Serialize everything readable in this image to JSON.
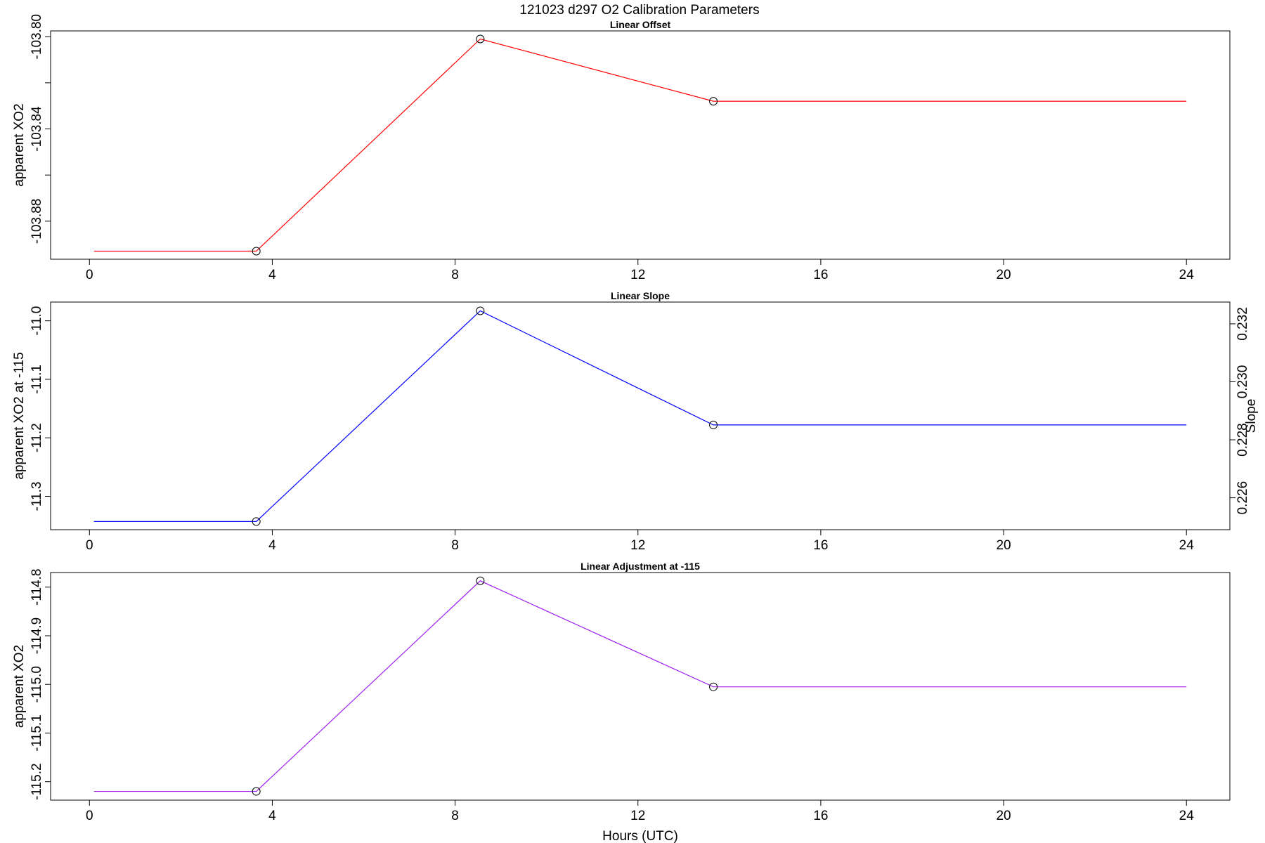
{
  "figure": {
    "title": "121023   d297   O2 Calibration Parameters",
    "xlabel": "Hours (UTC)"
  },
  "chart_data": [
    {
      "type": "line",
      "title": "Linear Offset",
      "xlabel": "",
      "ylabel": "apparent XO2",
      "xlim": [
        -0.85,
        24.95
      ],
      "ylim": [
        -103.8965,
        -103.7975
      ],
      "x_ticks": [
        "0",
        "4",
        "8",
        "12",
        "16",
        "20",
        "24"
      ],
      "x_tick_values": [
        0,
        4,
        8,
        12,
        16,
        20,
        24
      ],
      "y_ticks": [
        "-103.80",
        "-103.84",
        "-103.88"
      ],
      "y_tick_values": [
        -103.8,
        -103.84,
        -103.88
      ],
      "y_minor_ticks": [
        -103.82,
        -103.86
      ],
      "line_color": "#ff0000",
      "line": {
        "x": [
          0.1,
          3.65,
          8.55,
          13.65,
          24.0
        ],
        "y": [
          -103.893,
          -103.893,
          -103.801,
          -103.828,
          -103.828
        ]
      },
      "markers": {
        "x": [
          3.65,
          8.55,
          13.65
        ],
        "y": [
          -103.893,
          -103.801,
          -103.828
        ]
      }
    },
    {
      "type": "line",
      "title": "Linear Slope",
      "xlabel": "",
      "ylabel": "apparent XO2 at -115",
      "y2label": "Slope",
      "xlim": [
        -0.85,
        24.95
      ],
      "ylim": [
        -11.357,
        -10.968
      ],
      "y2lim": [
        0.2249,
        0.23275
      ],
      "x_ticks": [
        "0",
        "4",
        "8",
        "12",
        "16",
        "20",
        "24"
      ],
      "x_tick_values": [
        0,
        4,
        8,
        12,
        16,
        20,
        24
      ],
      "y_ticks": [
        "-11.0",
        "-11.1",
        "-11.2",
        "-11.3"
      ],
      "y_tick_values": [
        -11.0,
        -11.1,
        -11.2,
        -11.3
      ],
      "y2_ticks": [
        "0.232",
        "0.230",
        "0.228",
        "0.226"
      ],
      "y2_tick_values": [
        0.232,
        0.23,
        0.228,
        0.226
      ],
      "line_color": "#0000ff",
      "line": {
        "x": [
          0.1,
          3.65,
          8.55,
          13.65,
          24.0
        ],
        "y": [
          -11.343,
          -11.343,
          -10.983,
          -11.178,
          -11.178
        ]
      },
      "markers": {
        "x": [
          3.65,
          8.55,
          13.65
        ],
        "y": [
          -11.343,
          -10.983,
          -11.178
        ]
      }
    },
    {
      "type": "line",
      "title": "Linear Adjustment at -115",
      "xlabel": "Hours (UTC)",
      "ylabel": "apparent XO2",
      "xlim": [
        -0.85,
        24.95
      ],
      "ylim": [
        -115.238,
        -114.77
      ],
      "x_ticks": [
        "0",
        "4",
        "8",
        "12",
        "16",
        "20",
        "24"
      ],
      "x_tick_values": [
        0,
        4,
        8,
        12,
        16,
        20,
        24
      ],
      "y_ticks": [
        "-114.8",
        "-114.9",
        "-115.0",
        "-115.1",
        "-115.2"
      ],
      "y_tick_values": [
        -114.8,
        -114.9,
        -115.0,
        -115.1,
        -115.2
      ],
      "line_color": "#a020f0",
      "line": {
        "x": [
          0.1,
          3.65,
          8.55,
          13.65,
          24.0
        ],
        "y": [
          -115.22,
          -115.22,
          -114.787,
          -115.005,
          -115.005
        ]
      },
      "markers": {
        "x": [
          3.65,
          8.55,
          13.65
        ],
        "y": [
          -115.22,
          -114.787,
          -115.005
        ]
      }
    }
  ]
}
